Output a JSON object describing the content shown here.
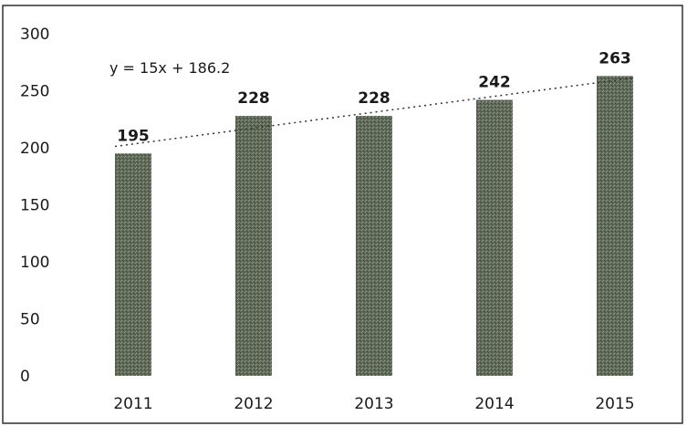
{
  "chart_data": {
    "type": "bar",
    "title": "",
    "xlabel": "",
    "ylabel": "",
    "categories": [
      "2011",
      "2012",
      "2013",
      "2014",
      "2015"
    ],
    "values": [
      195,
      228,
      228,
      242,
      263
    ],
    "data_labels": [
      "195",
      "228",
      "228",
      "242",
      "263"
    ],
    "ylim": [
      0,
      300
    ],
    "yticks": [
      0,
      50,
      100,
      150,
      200,
      250,
      300
    ],
    "ytick_labels": [
      "0",
      "50",
      "100",
      "150",
      "200",
      "250",
      "300"
    ],
    "grid": false,
    "legend": "none",
    "trendline": {
      "type": "linear",
      "slope": 15,
      "intercept": 186.2,
      "style": "dotted",
      "equation_label": "y = 15x + 186.2"
    },
    "colors": {
      "bar": "#5f6a58",
      "bar_texture": "#8e9a86",
      "trendline": "#333333",
      "border": "#222222"
    }
  }
}
